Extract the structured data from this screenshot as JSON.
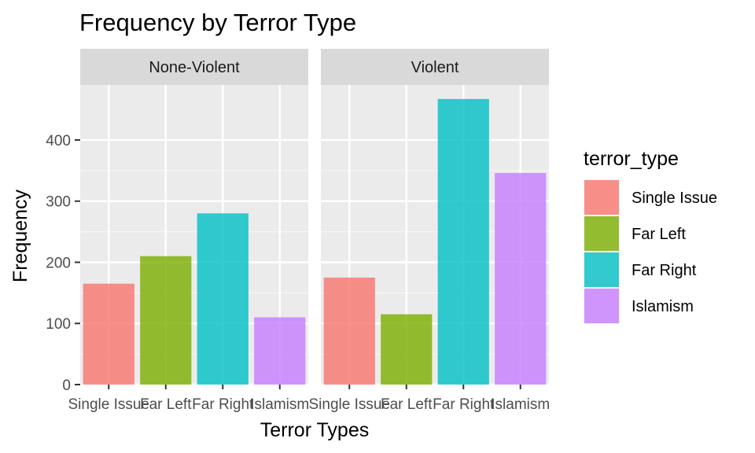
{
  "chart_data": {
    "type": "bar",
    "title": "Frequency by Terror Type",
    "xlabel": "Terror Types",
    "ylabel": "Frequency",
    "categories": [
      "Single Issue",
      "Far Left",
      "Far Right",
      "Islamism"
    ],
    "ylim": [
      0,
      490
    ],
    "yticks": [
      0,
      100,
      200,
      300,
      400
    ],
    "grid": true,
    "legend": {
      "title": "terror_type",
      "placement": "right",
      "entries": [
        "Single Issue",
        "Far Left",
        "Far Right",
        "Islamism"
      ]
    },
    "colors": [
      "#F8766D",
      "#7CAE00",
      "#00BFC4",
      "#C77CFF"
    ],
    "panels": [
      {
        "label": "None-Violent",
        "values": [
          165,
          210,
          280,
          110
        ]
      },
      {
        "label": "Violent",
        "values": [
          175,
          115,
          467,
          346
        ]
      }
    ]
  }
}
